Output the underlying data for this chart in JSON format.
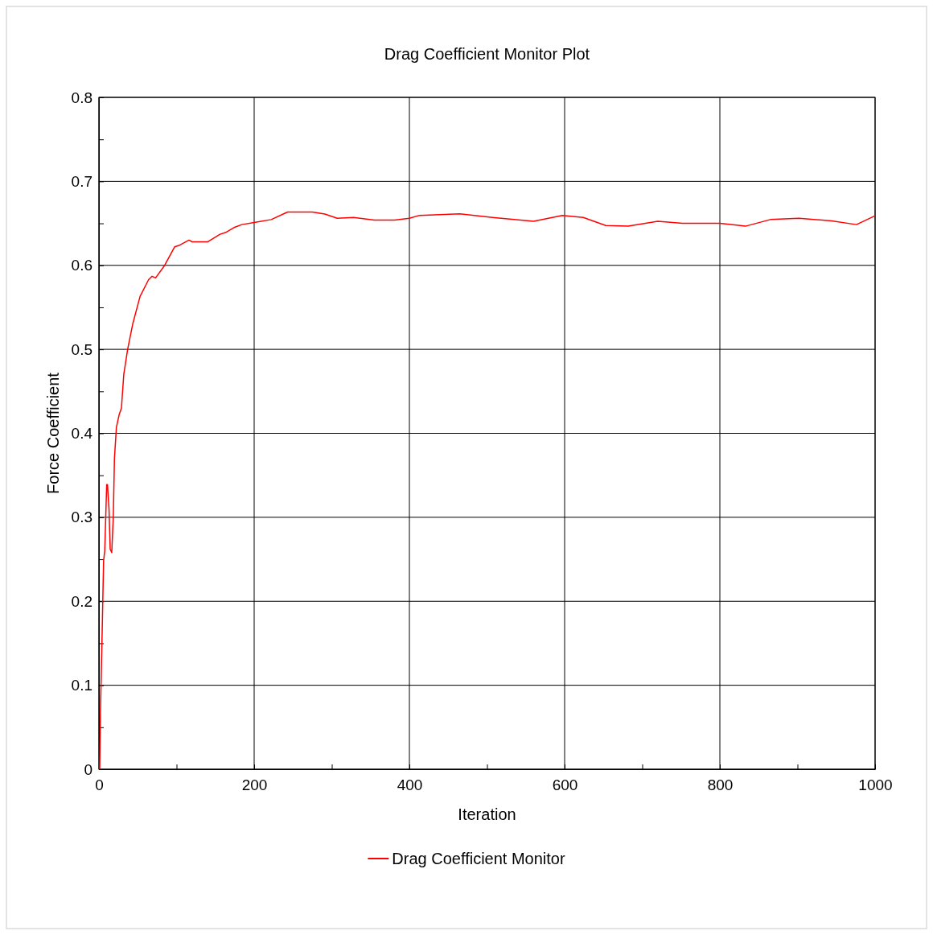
{
  "chart_data": {
    "type": "line",
    "title": "Drag Coefficient Monitor Plot",
    "xlabel": "Iteration",
    "ylabel": "Force Coefficient",
    "xlim": [
      0,
      1000
    ],
    "ylim": [
      0,
      0.8
    ],
    "xticks": [
      0,
      {
        "value": 100,
        "label": null
      },
      200,
      {
        "value": 300,
        "label": null
      },
      400,
      {
        "value": 500,
        "label": null
      },
      600,
      {
        "value": 700,
        "label": null
      },
      800,
      {
        "value": 900,
        "label": null
      },
      1000
    ],
    "yticks": [
      0,
      {
        "value": 0.05,
        "label": null
      },
      0.1,
      {
        "value": 0.15,
        "label": null
      },
      0.2,
      {
        "value": 0.25,
        "label": null
      },
      0.3,
      {
        "value": 0.35,
        "label": null
      },
      0.4,
      {
        "value": 0.45,
        "label": null
      },
      0.5,
      {
        "value": 0.55,
        "label": null
      },
      0.6,
      {
        "value": 0.65,
        "label": null
      },
      0.7,
      {
        "value": 0.75,
        "label": null
      },
      0.8
    ],
    "grid": true,
    "legend": "bottom",
    "marker": "none",
    "line_style": "solid",
    "series": [
      {
        "name": "Drag Coefficient Monitor",
        "color": "#ff0000",
        "x": [
          1,
          2,
          4,
          6,
          7.5,
          10,
          11,
          13,
          14.5,
          16.5,
          18.5,
          20,
          22.5,
          26,
          29,
          32,
          37,
          43.5,
          53,
          64,
          68.5,
          73,
          84,
          97.5,
          104,
          116,
          120,
          140,
          156,
          163,
          174,
          184,
          200,
          222,
          243,
          265,
          275,
          291,
          307,
          328,
          355,
          381,
          400,
          413,
          465,
          507,
          560,
          597,
          624,
          653,
          682,
          720,
          752,
          800,
          833,
          865,
          902,
          944,
          976,
          1000
        ],
        "values": [
          0,
          0.069,
          0.156,
          0.248,
          0.26,
          0.339,
          0.339,
          0.31,
          0.262,
          0.258,
          0.3,
          0.37,
          0.407,
          0.422,
          0.43,
          0.47,
          0.5,
          0.53,
          0.563,
          0.583,
          0.587,
          0.585,
          0.599,
          0.622,
          0.624,
          0.63,
          0.628,
          0.628,
          0.637,
          0.639,
          0.645,
          0.6485,
          0.651,
          0.6545,
          0.6635,
          0.6635,
          0.6635,
          0.661,
          0.656,
          0.657,
          0.654,
          0.654,
          0.656,
          0.6595,
          0.6614,
          0.657,
          0.6525,
          0.6595,
          0.657,
          0.6475,
          0.6466,
          0.6525,
          0.65,
          0.65,
          0.6466,
          0.6545,
          0.656,
          0.653,
          0.6485,
          0.659
        ]
      }
    ]
  }
}
